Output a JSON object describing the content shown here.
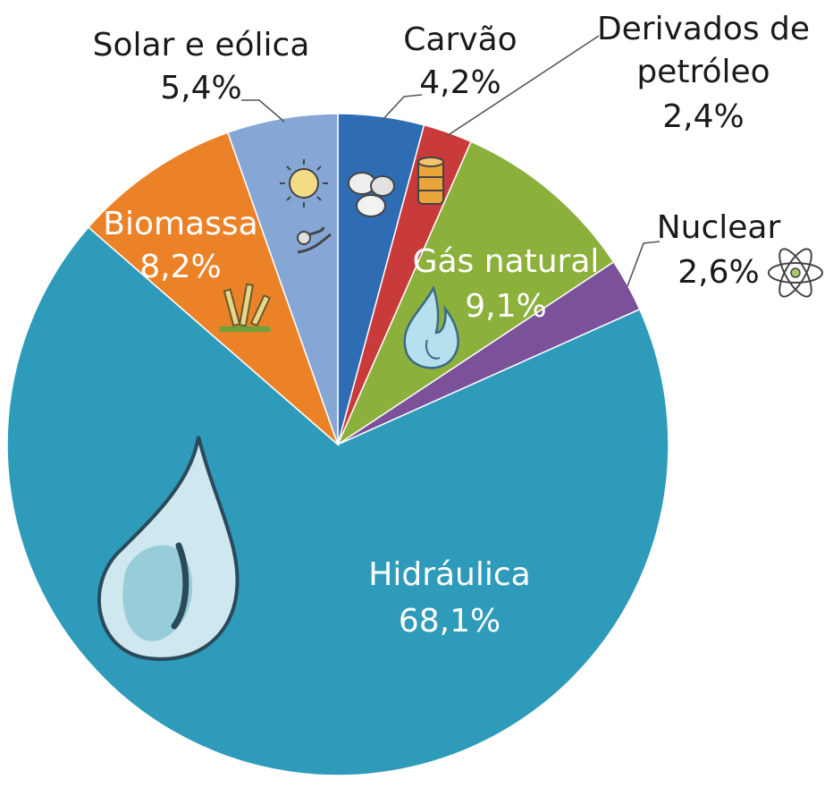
{
  "chart_data": {
    "type": "pie",
    "slices": [
      {
        "name": "Carvão",
        "value": 4.2,
        "value_label": "4,2%",
        "color": "#2e6db4",
        "icon": "coal-icon"
      },
      {
        "name": "Derivados de petróleo",
        "value": 2.4,
        "value_label": "2,4%",
        "color": "#c93a3a",
        "icon": "oil-barrel-icon"
      },
      {
        "name": "Gás natural",
        "value": 9.1,
        "value_label": "9,1%",
        "color": "#8cb03c",
        "icon": "flame-icon"
      },
      {
        "name": "Nuclear",
        "value": 2.6,
        "value_label": "2,6%",
        "color": "#7b5199",
        "icon": "atom-icon"
      },
      {
        "name": "Hidráulica",
        "value": 68.1,
        "value_label": "68,1%",
        "color": "#2f9bbb",
        "icon": "water-drop-icon"
      },
      {
        "name": "Biomassa",
        "value": 8.2,
        "value_label": "8,2%",
        "color": "#ec8228",
        "icon": "sugarcane-icon"
      },
      {
        "name": "Solar e eólica",
        "value": 5.4,
        "value_label": "5,4%",
        "color": "#86a7d6",
        "icon": "sun-wind-icon"
      }
    ],
    "start_angle": "12 o'clock",
    "direction": "clockwise",
    "legend": "none (labels next to slices)"
  }
}
